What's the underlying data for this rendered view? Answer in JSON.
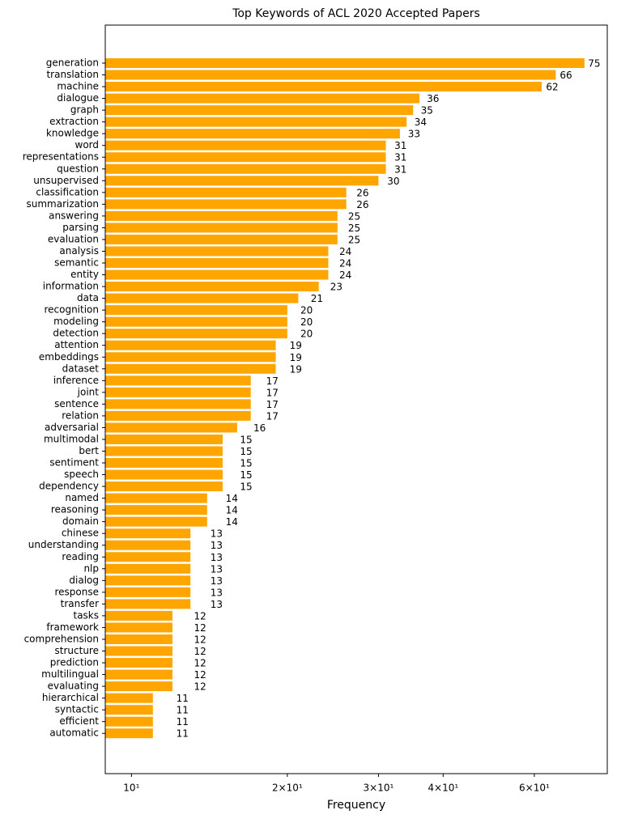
{
  "chart_data": {
    "type": "barh",
    "title": "Top Keywords of ACL 2020 Accepted Papers",
    "xlabel": "Frequency",
    "xscale": "log",
    "color": "#ffa500",
    "categories": [
      "generation",
      "translation",
      "machine",
      "dialogue",
      "graph",
      "extraction",
      "knowledge",
      "word",
      "representations",
      "question",
      "unsupervised",
      "classification",
      "summarization",
      "answering",
      "parsing",
      "evaluation",
      "analysis",
      "semantic",
      "entity",
      "information",
      "data",
      "recognition",
      "modeling",
      "detection",
      "attention",
      "embeddings",
      "dataset",
      "inference",
      "joint",
      "sentence",
      "relation",
      "adversarial",
      "multimodal",
      "bert",
      "sentiment",
      "speech",
      "dependency",
      "named",
      "reasoning",
      "domain",
      "chinese",
      "understanding",
      "reading",
      "nlp",
      "dialog",
      "response",
      "transfer",
      "tasks",
      "framework",
      "comprehension",
      "structure",
      "prediction",
      "multilingual",
      "evaluating",
      "hierarchical",
      "syntactic",
      "efficient",
      "automatic"
    ],
    "values": [
      75,
      66,
      62,
      36,
      35,
      34,
      33,
      31,
      31,
      31,
      30,
      26,
      26,
      25,
      25,
      25,
      24,
      24,
      24,
      23,
      21,
      20,
      20,
      20,
      19,
      19,
      19,
      17,
      17,
      17,
      17,
      16,
      15,
      15,
      15,
      15,
      15,
      14,
      14,
      14,
      13,
      13,
      13,
      13,
      13,
      13,
      13,
      12,
      12,
      12,
      12,
      12,
      12,
      12,
      11,
      11,
      11,
      11
    ],
    "xlim": [
      8.9,
      83
    ],
    "xticks": [
      {
        "value": 10,
        "label": "10¹"
      },
      {
        "value": 20,
        "label": "2×10¹"
      },
      {
        "value": 30,
        "label": "3×10¹"
      },
      {
        "value": 40,
        "label": "4×10¹"
      },
      {
        "value": 60,
        "label": "6×10¹"
      }
    ]
  }
}
